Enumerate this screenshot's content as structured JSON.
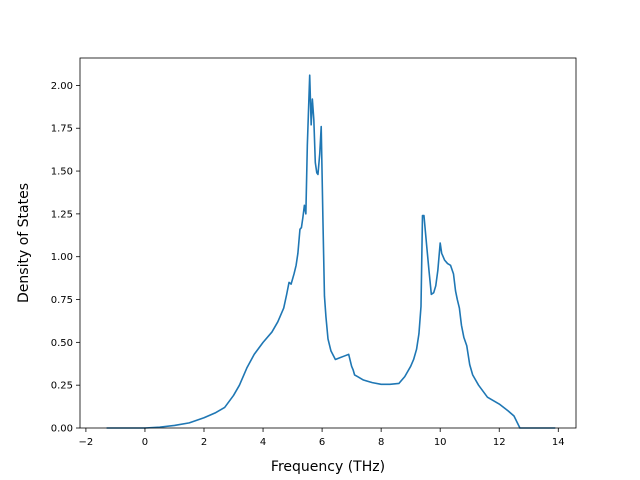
{
  "chart_data": {
    "type": "line",
    "title": "",
    "xlabel": "Frequency (THz)",
    "ylabel": "Density of States",
    "xlim": [
      -2.2,
      14.6
    ],
    "ylim": [
      0,
      2.16
    ],
    "xticks": [
      -2,
      0,
      2,
      4,
      6,
      8,
      10,
      12,
      14
    ],
    "xtick_labels": [
      "−2",
      "0",
      "2",
      "4",
      "6",
      "8",
      "10",
      "12",
      "14"
    ],
    "yticks": [
      0,
      0.25,
      0.5,
      0.75,
      1.0,
      1.25,
      1.5,
      1.75,
      2.0
    ],
    "ytick_labels": [
      "0.00",
      "0.25",
      "0.50",
      "0.75",
      "1.00",
      "1.25",
      "1.50",
      "1.75",
      "2.00"
    ],
    "grid": false,
    "line_color": "#1f77b4",
    "series": [
      {
        "x": [
          -1.3,
          -0.5,
          0,
          0.5,
          1.0,
          1.5,
          2.0,
          2.4,
          2.7,
          3.0,
          3.2,
          3.35,
          3.45,
          3.7,
          4.0,
          4.3,
          4.5,
          4.6,
          4.7,
          4.8,
          4.88,
          4.95,
          5.05,
          5.12,
          5.18,
          5.25,
          5.3,
          5.35,
          5.4,
          5.45,
          5.5,
          5.58,
          5.63,
          5.67,
          5.72,
          5.77,
          5.82,
          5.86,
          5.92,
          5.97,
          6.03,
          6.08,
          6.13,
          6.2,
          6.3,
          6.45,
          6.6,
          6.75,
          6.9,
          7.0,
          7.05,
          7.1,
          7.2,
          7.4,
          7.7,
          8.0,
          8.3,
          8.6,
          8.8,
          9.0,
          9.1,
          9.2,
          9.28,
          9.35,
          9.4,
          9.45,
          9.55,
          9.62,
          9.7,
          9.78,
          9.85,
          9.92,
          10.0,
          10.05,
          10.1,
          10.15,
          10.25,
          10.35,
          10.45,
          10.52,
          10.58,
          10.65,
          10.72,
          10.8,
          10.9,
          11.0,
          11.1,
          11.3,
          11.6,
          12.0,
          12.3,
          12.5,
          12.7,
          13.0,
          13.5,
          13.9
        ],
        "y": [
          0.0,
          0.0,
          0.0,
          0.005,
          0.015,
          0.03,
          0.06,
          0.09,
          0.12,
          0.19,
          0.25,
          0.31,
          0.35,
          0.43,
          0.5,
          0.56,
          0.62,
          0.66,
          0.7,
          0.78,
          0.85,
          0.84,
          0.9,
          0.95,
          1.02,
          1.16,
          1.17,
          1.23,
          1.3,
          1.25,
          1.65,
          2.06,
          1.77,
          1.92,
          1.8,
          1.55,
          1.49,
          1.48,
          1.6,
          1.76,
          1.2,
          0.77,
          0.65,
          0.52,
          0.45,
          0.4,
          0.41,
          0.42,
          0.43,
          0.36,
          0.34,
          0.31,
          0.3,
          0.28,
          0.265,
          0.255,
          0.255,
          0.26,
          0.3,
          0.36,
          0.4,
          0.46,
          0.55,
          0.71,
          1.24,
          1.24,
          1.05,
          0.92,
          0.78,
          0.79,
          0.83,
          0.92,
          1.08,
          1.02,
          1.0,
          0.98,
          0.96,
          0.95,
          0.9,
          0.8,
          0.75,
          0.7,
          0.6,
          0.53,
          0.48,
          0.37,
          0.31,
          0.25,
          0.18,
          0.14,
          0.1,
          0.07,
          0.0,
          0.0,
          0.0,
          0.0
        ]
      }
    ]
  }
}
